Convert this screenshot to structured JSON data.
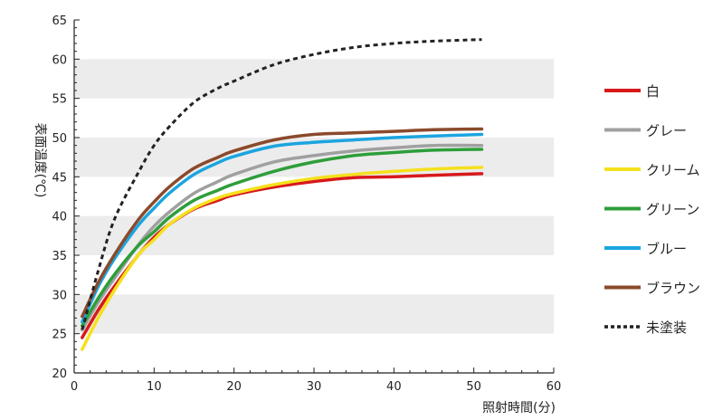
{
  "chart_data": {
    "type": "line",
    "xlabel": "照射時間(分)",
    "ylabel": "表面温度(℃)",
    "xlim": [
      0,
      60
    ],
    "ylim": [
      20,
      65
    ],
    "xticks": [
      0,
      10,
      20,
      30,
      40,
      50,
      60
    ],
    "yticks": [
      20,
      25,
      30,
      35,
      40,
      45,
      50,
      55,
      60,
      65
    ],
    "grid": "horizontal bands",
    "band_color": "#ececec",
    "legend_position": "right",
    "series": [
      {
        "name": "白",
        "color": "#d7191c",
        "style": "solid",
        "x": [
          1,
          3,
          5,
          8,
          10,
          12,
          15,
          18,
          20,
          25,
          30,
          35,
          40,
          45,
          51
        ],
        "y": [
          24.5,
          28,
          31,
          35,
          37.3,
          39,
          40.9,
          42,
          42.7,
          43.7,
          44.4,
          44.9,
          45,
          45.2,
          45.4
        ]
      },
      {
        "name": "グレー",
        "color": "#a0a0a0",
        "style": "solid",
        "x": [
          1,
          3,
          5,
          8,
          10,
          12,
          15,
          18,
          20,
          25,
          30,
          35,
          40,
          45,
          51
        ],
        "y": [
          25.5,
          29,
          32,
          36.3,
          38.7,
          40.6,
          42.9,
          44.4,
          45.3,
          46.9,
          47.7,
          48.3,
          48.7,
          49,
          49
        ]
      },
      {
        "name": "クリーム",
        "color": "#f5e01d",
        "style": "solid",
        "x": [
          1,
          3,
          5,
          8,
          10,
          12,
          15,
          18,
          20,
          25,
          30,
          35,
          40,
          45,
          51
        ],
        "y": [
          23,
          27,
          30.5,
          35,
          37,
          39,
          41,
          42.3,
          42.9,
          44,
          44.8,
          45.3,
          45.7,
          46,
          46.2
        ]
      },
      {
        "name": "グリーン",
        "color": "#2e9e3a",
        "style": "solid",
        "x": [
          1,
          3,
          5,
          8,
          10,
          12,
          15,
          18,
          20,
          25,
          30,
          35,
          40,
          45,
          51
        ],
        "y": [
          26,
          29.5,
          32.5,
          36.2,
          38,
          39.9,
          42,
          43.3,
          44.1,
          45.7,
          46.9,
          47.7,
          48.1,
          48.4,
          48.5
        ]
      },
      {
        "name": "ブルー",
        "color": "#1ba5df",
        "style": "solid",
        "x": [
          1,
          3,
          5,
          8,
          10,
          12,
          15,
          18,
          20,
          25,
          30,
          35,
          40,
          45,
          51
        ],
        "y": [
          26.5,
          31,
          34.5,
          38.8,
          41,
          43,
          45.3,
          46.8,
          47.6,
          48.9,
          49.4,
          49.7,
          50,
          50.2,
          50.4
        ]
      },
      {
        "name": "ブラウン",
        "color": "#8b4a2b",
        "style": "solid",
        "x": [
          1,
          3,
          5,
          8,
          10,
          12,
          15,
          18,
          20,
          25,
          30,
          35,
          40,
          45,
          51
        ],
        "y": [
          27.2,
          31.5,
          35,
          39.5,
          41.8,
          43.8,
          46.1,
          47.5,
          48.3,
          49.7,
          50.4,
          50.6,
          50.8,
          51,
          51.1
        ]
      },
      {
        "name": "未塗装",
        "color": "#222222",
        "style": "dotted",
        "x": [
          1,
          3,
          5,
          8,
          10,
          12,
          15,
          18,
          20,
          25,
          30,
          35,
          40,
          45,
          51
        ],
        "y": [
          25.5,
          33,
          39.5,
          45.5,
          49,
          51.5,
          54.5,
          56.3,
          57.2,
          59.3,
          60.6,
          61.5,
          62,
          62.3,
          62.5
        ]
      }
    ]
  }
}
